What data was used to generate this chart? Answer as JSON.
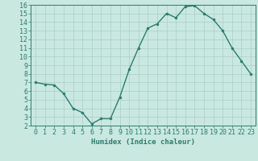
{
  "x": [
    0,
    1,
    2,
    3,
    4,
    5,
    6,
    7,
    8,
    9,
    10,
    11,
    12,
    13,
    14,
    15,
    16,
    17,
    18,
    19,
    20,
    21,
    22,
    23
  ],
  "y": [
    7.0,
    6.8,
    6.7,
    5.7,
    4.0,
    3.5,
    2.2,
    2.8,
    2.8,
    5.3,
    8.5,
    11.0,
    13.3,
    13.8,
    15.0,
    14.5,
    15.8,
    15.9,
    15.0,
    14.3,
    13.0,
    11.0,
    9.5,
    8.0
  ],
  "line_color": "#2d7d6e",
  "marker": "o",
  "marker_size": 2,
  "bg_color": "#c8e8e0",
  "grid_color": "#aacfc8",
  "axis_color": "#2d7d6e",
  "tick_color": "#2d7d6e",
  "xlabel": "Humidex (Indice chaleur)",
  "xlim": [
    -0.5,
    23.5
  ],
  "ylim": [
    2,
    16
  ],
  "yticks": [
    2,
    3,
    4,
    5,
    6,
    7,
    8,
    9,
    10,
    11,
    12,
    13,
    14,
    15,
    16
  ],
  "xticks": [
    0,
    1,
    2,
    3,
    4,
    5,
    6,
    7,
    8,
    9,
    10,
    11,
    12,
    13,
    14,
    15,
    16,
    17,
    18,
    19,
    20,
    21,
    22,
    23
  ],
  "label_fontsize": 6.5,
  "tick_fontsize": 6
}
